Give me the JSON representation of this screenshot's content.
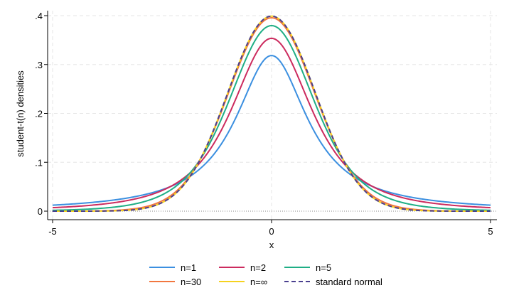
{
  "chart_data": {
    "type": "line",
    "title": "",
    "xlabel": "x",
    "ylabel": "student-t(n) densities",
    "xlim": [
      -5,
      5
    ],
    "ylim": [
      0,
      0.4
    ],
    "x_ticks": [
      {
        "value": -5,
        "label": "-5"
      },
      {
        "value": 0,
        "label": "0"
      },
      {
        "value": 5,
        "label": "5"
      }
    ],
    "y_ticks": [
      {
        "value": 0,
        "label": "0"
      },
      {
        "value": 0.1,
        "label": ".1"
      },
      {
        "value": 0.2,
        "label": ".2"
      },
      {
        "value": 0.3,
        "label": ".3"
      },
      {
        "value": 0.4,
        "label": ".4"
      }
    ],
    "grid": true,
    "legend_position": "bottom",
    "series": [
      {
        "name": "n=1",
        "df": 1,
        "color": "#3b8fe0",
        "dash": "solid"
      },
      {
        "name": "n=2",
        "df": 2,
        "color": "#cc2b5e",
        "dash": "solid"
      },
      {
        "name": "n=5",
        "df": 5,
        "color": "#1fae85",
        "dash": "solid"
      },
      {
        "name": "n=30",
        "df": 30,
        "color": "#f2773f",
        "dash": "solid"
      },
      {
        "name": "n=∞",
        "df": "inf",
        "color": "#f5d21f",
        "dash": "solid"
      },
      {
        "name": "standard normal",
        "df": "normal",
        "color": "#4a3f8f",
        "dash": "dashed"
      }
    ]
  }
}
